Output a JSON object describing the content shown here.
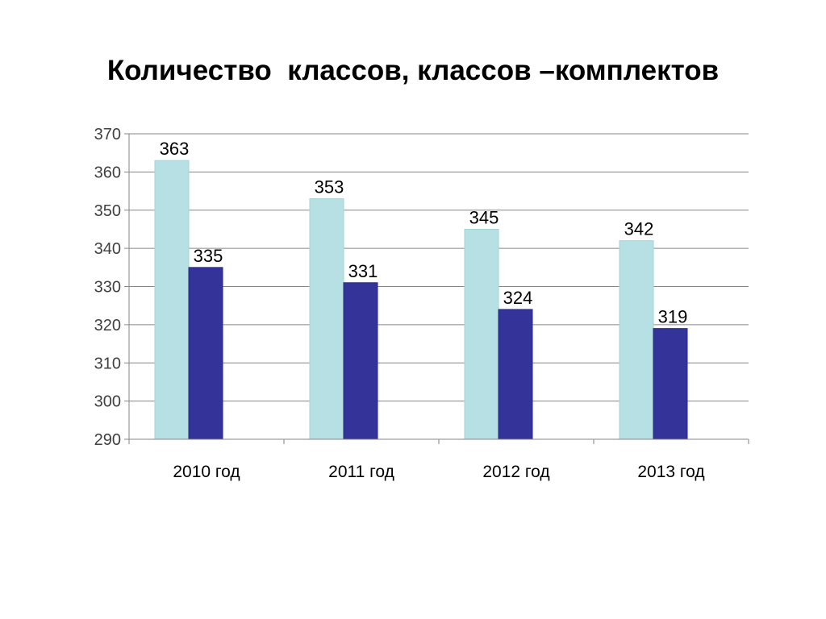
{
  "slide": {
    "title": "Количество  классов, классов –комплектов"
  },
  "chart_data": {
    "type": "bar",
    "title": "",
    "xlabel": "",
    "ylabel": "",
    "categories": [
      "2010 год",
      "2011 год",
      "2012 год",
      "2013 год"
    ],
    "series": [
      {
        "values": [
          363,
          353,
          345,
          342
        ],
        "color": "#b7e0e4"
      },
      {
        "values": [
          335,
          331,
          324,
          319
        ],
        "color": "#333399"
      }
    ],
    "ylim": [
      290,
      370
    ],
    "yticks": [
      290,
      300,
      310,
      320,
      330,
      340,
      350,
      360,
      370
    ],
    "grid": true,
    "legend": "none",
    "data_labels": true
  }
}
